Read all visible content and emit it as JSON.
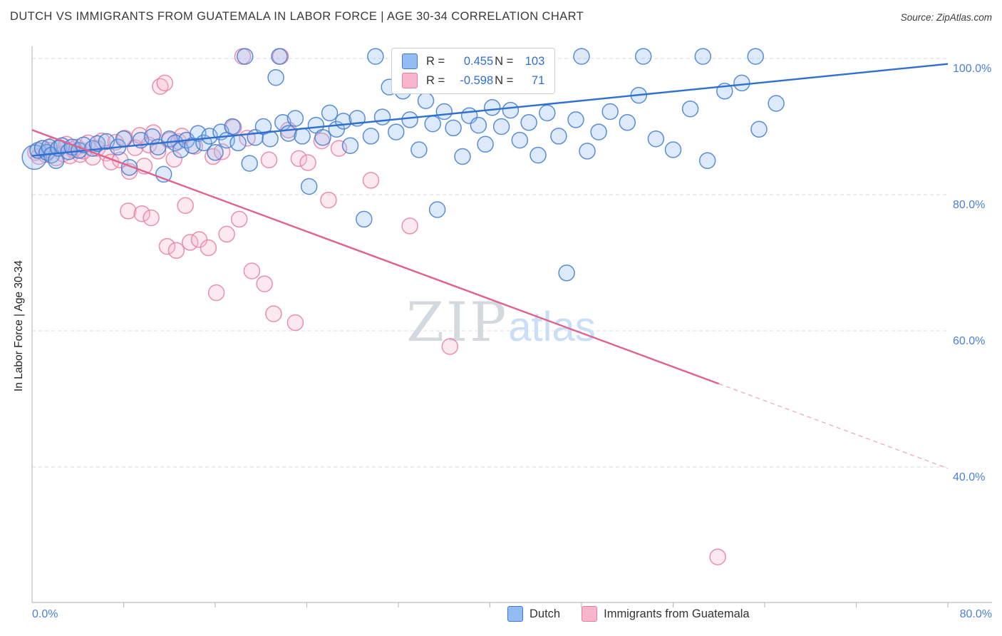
{
  "header": {
    "title": "DUTCH VS IMMIGRANTS FROM GUATEMALA IN LABOR FORCE | AGE 30-34 CORRELATION CHART",
    "source": "Source: ZipAtlas.com"
  },
  "watermark": {
    "zip": "ZIP",
    "atlas": "atlas"
  },
  "axes": {
    "x_min_label": "0.0%",
    "x_max_label": "80.0%",
    "y_tick_labels": [
      "100.0%",
      "80.0%",
      "60.0%",
      "40.0%"
    ]
  },
  "legend_box": {
    "r_label": "R =",
    "n_label": "N ="
  },
  "chart_data": {
    "type": "scatter",
    "title": "DUTCH VS IMMIGRANTS FROM GUATEMALA IN LABOR FORCE | AGE 30-34 CORRELATION CHART",
    "xlabel": "",
    "ylabel": "In Labor Force | Age 30-34",
    "xlim": [
      0,
      80
    ],
    "ylim": [
      20,
      102
    ],
    "grid_y": [
      100,
      80,
      60,
      40
    ],
    "grid_style": "dashed horizontal",
    "legend_position": "top-center and bottom-center",
    "series": [
      {
        "id": "dutch",
        "name": "Dutch",
        "R": 0.455,
        "N": 103,
        "fill": "#93bdf2",
        "stroke": "#3f7ad0",
        "line": "#2e6fd0",
        "trend": {
          "x": [
            0,
            80
          ],
          "y": [
            85.7,
            99.2
          ]
        },
        "points": [
          [
            0.2,
            85.5,
            17
          ],
          [
            0.5,
            86.5
          ],
          [
            0.9,
            86.8
          ],
          [
            1.3,
            86.2
          ],
          [
            1.5,
            87.0
          ],
          [
            1.7,
            85.8
          ],
          [
            2.1,
            85.0
          ],
          [
            2.3,
            86.8
          ],
          [
            2.6,
            87.2
          ],
          [
            3.2,
            86.3
          ],
          [
            3.5,
            87.0
          ],
          [
            4.1,
            86.5
          ],
          [
            4.5,
            87.3
          ],
          [
            5.3,
            86.8
          ],
          [
            5.7,
            87.5
          ],
          [
            6.5,
            87.8
          ],
          [
            7.5,
            87.0
          ],
          [
            8.0,
            88.2
          ],
          [
            8.5,
            84.0
          ],
          [
            9.5,
            88.0
          ],
          [
            10.5,
            88.5
          ],
          [
            11.0,
            87.0
          ],
          [
            11.5,
            83.0
          ],
          [
            12.0,
            88.2
          ],
          [
            12.5,
            87.6
          ],
          [
            13.0,
            86.6
          ],
          [
            13.5,
            88.0
          ],
          [
            14.0,
            87.2
          ],
          [
            14.5,
            89.0
          ],
          [
            15.0,
            87.6
          ],
          [
            15.5,
            88.6
          ],
          [
            16.0,
            86.2
          ],
          [
            16.5,
            89.2
          ],
          [
            17.0,
            88.0
          ],
          [
            17.5,
            90.0
          ],
          [
            18.0,
            87.6
          ],
          [
            19.0,
            84.6
          ],
          [
            19.5,
            88.4
          ],
          [
            20.2,
            90.0
          ],
          [
            20.8,
            88.2
          ],
          [
            21.3,
            97.2
          ],
          [
            21.9,
            90.6
          ],
          [
            22.4,
            89.0
          ],
          [
            23.0,
            91.2
          ],
          [
            23.6,
            88.6
          ],
          [
            24.2,
            81.2
          ],
          [
            24.8,
            90.2
          ],
          [
            25.4,
            88.4
          ],
          [
            26.0,
            92.0
          ],
          [
            26.6,
            89.6
          ],
          [
            27.2,
            90.8
          ],
          [
            27.8,
            87.2
          ],
          [
            28.4,
            91.2
          ],
          [
            29.0,
            76.4
          ],
          [
            29.6,
            88.6
          ],
          [
            18.6,
            100.3
          ],
          [
            21.6,
            100.3
          ],
          [
            30.0,
            100.3
          ],
          [
            33.6,
            100.3
          ],
          [
            36.4,
            100.3
          ],
          [
            37.2,
            100.3
          ],
          [
            48.0,
            100.3
          ],
          [
            53.4,
            100.3
          ],
          [
            58.6,
            100.3
          ],
          [
            63.2,
            100.3
          ],
          [
            30.6,
            91.4
          ],
          [
            31.2,
            95.8
          ],
          [
            31.8,
            89.2
          ],
          [
            32.4,
            95.2
          ],
          [
            33.0,
            91.0
          ],
          [
            33.8,
            86.6
          ],
          [
            34.4,
            93.8
          ],
          [
            35.0,
            90.4
          ],
          [
            35.4,
            77.8
          ],
          [
            36.0,
            92.2
          ],
          [
            36.8,
            89.8
          ],
          [
            37.6,
            85.6
          ],
          [
            38.2,
            91.6
          ],
          [
            39.0,
            90.2
          ],
          [
            39.6,
            87.4
          ],
          [
            40.2,
            92.8
          ],
          [
            41.0,
            90.0
          ],
          [
            41.8,
            92.4
          ],
          [
            42.6,
            88.0
          ],
          [
            43.4,
            90.6
          ],
          [
            44.2,
            85.8
          ],
          [
            45.0,
            92.0
          ],
          [
            46.0,
            88.6
          ],
          [
            46.7,
            68.5
          ],
          [
            47.5,
            91.0
          ],
          [
            48.5,
            86.4
          ],
          [
            49.5,
            89.2
          ],
          [
            50.5,
            92.2
          ],
          [
            52.0,
            90.6
          ],
          [
            53.0,
            94.6
          ],
          [
            54.5,
            88.2
          ],
          [
            56.0,
            86.6
          ],
          [
            57.5,
            92.6
          ],
          [
            59.0,
            85.0
          ],
          [
            60.5,
            95.2
          ],
          [
            62.0,
            96.4
          ],
          [
            63.5,
            89.6
          ],
          [
            65.0,
            93.4
          ]
        ]
      },
      {
        "id": "guatemala",
        "name": "Immigrants from Guatemala",
        "R": -0.598,
        "N": 71,
        "fill": "#f7b6cc",
        "stroke": "#e87da2",
        "line": "#e0608e",
        "trend": {
          "x": [
            0,
            80
          ],
          "y": [
            89.5,
            39.8
          ],
          "solid_until_x": 60
        },
        "points": [
          [
            0.3,
            86.2
          ],
          [
            0.6,
            85.6
          ],
          [
            0.9,
            86.8
          ],
          [
            1.2,
            85.9
          ],
          [
            1.5,
            86.5
          ],
          [
            1.8,
            87.2
          ],
          [
            2.1,
            85.4
          ],
          [
            2.4,
            86.9
          ],
          [
            2.7,
            86.0
          ],
          [
            3.0,
            87.4
          ],
          [
            3.3,
            85.7
          ],
          [
            3.6,
            86.6
          ],
          [
            3.9,
            87.0
          ],
          [
            4.2,
            85.9
          ],
          [
            4.5,
            86.4
          ],
          [
            4.9,
            87.6
          ],
          [
            5.3,
            85.5
          ],
          [
            5.7,
            86.8
          ],
          [
            6.1,
            87.9
          ],
          [
            6.5,
            86.1
          ],
          [
            6.9,
            84.8
          ],
          [
            7.3,
            87.7
          ],
          [
            7.7,
            85.1
          ],
          [
            8.1,
            88.3
          ],
          [
            8.5,
            83.4
          ],
          [
            9.0,
            86.9
          ],
          [
            9.4,
            88.7
          ],
          [
            9.8,
            84.2
          ],
          [
            10.2,
            87.3
          ],
          [
            10.6,
            89.1
          ],
          [
            11.0,
            86.4
          ],
          [
            11.2,
            95.9
          ],
          [
            11.6,
            96.4
          ],
          [
            12.0,
            88.0
          ],
          [
            12.4,
            85.2
          ],
          [
            12.8,
            87.8
          ],
          [
            8.4,
            77.6
          ],
          [
            9.6,
            77.2
          ],
          [
            10.4,
            76.6
          ],
          [
            11.8,
            72.4
          ],
          [
            12.6,
            71.8
          ],
          [
            13.4,
            78.4
          ],
          [
            13.8,
            73.0
          ],
          [
            14.6,
            73.4
          ],
          [
            15.4,
            72.2
          ],
          [
            16.1,
            65.6
          ],
          [
            17.0,
            74.2
          ],
          [
            18.1,
            76.4
          ],
          [
            19.2,
            68.8
          ],
          [
            20.3,
            66.9
          ],
          [
            21.1,
            62.5
          ],
          [
            13.1,
            88.6
          ],
          [
            14.2,
            87.1
          ],
          [
            15.8,
            85.6
          ],
          [
            16.6,
            86.3
          ],
          [
            17.6,
            89.9
          ],
          [
            18.8,
            88.3
          ],
          [
            20.7,
            85.1
          ],
          [
            22.4,
            89.5
          ],
          [
            23.3,
            85.3
          ],
          [
            24.1,
            84.7
          ],
          [
            25.3,
            87.9
          ],
          [
            26.8,
            86.8
          ],
          [
            29.6,
            82.1
          ],
          [
            18.4,
            100.3
          ],
          [
            21.7,
            100.3
          ],
          [
            23.0,
            61.2
          ],
          [
            25.9,
            79.2
          ],
          [
            33.0,
            75.4
          ],
          [
            36.5,
            57.7
          ],
          [
            59.9,
            26.8
          ]
        ]
      }
    ]
  }
}
